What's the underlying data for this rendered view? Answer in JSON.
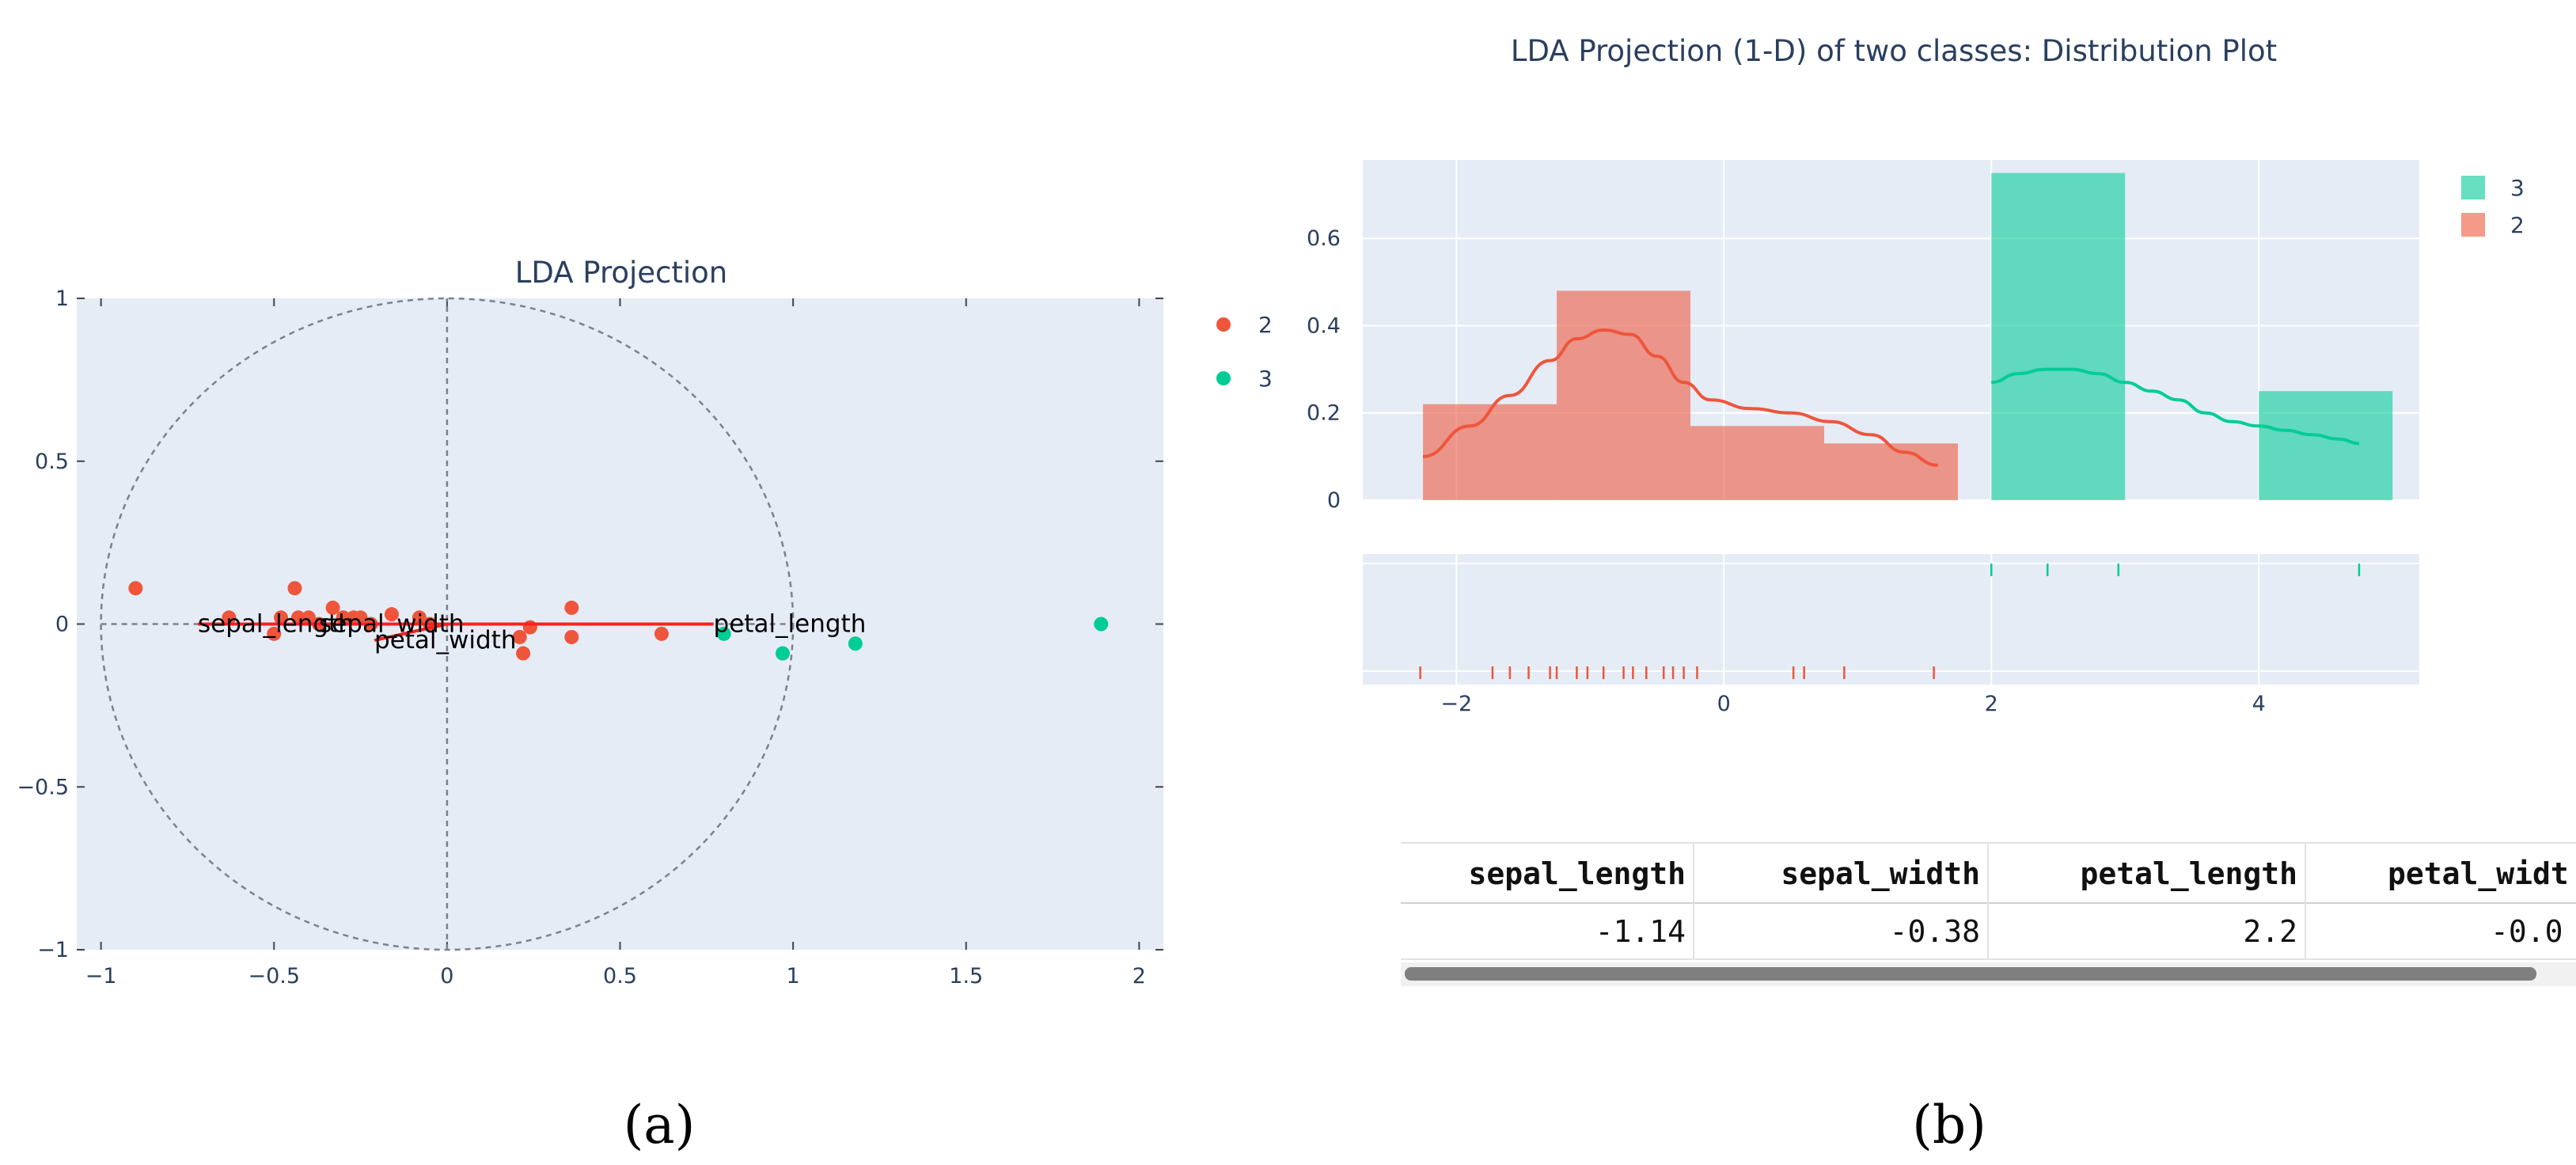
{
  "chart_data": [
    {
      "type": "scatter",
      "title": "LDA Projection",
      "xlim": [
        -1.07,
        2.07
      ],
      "ylim": [
        -1,
        1
      ],
      "x_ticks": [
        -1,
        -0.5,
        0,
        0.5,
        1,
        1.5,
        2
      ],
      "y_ticks": [
        -1,
        -0.5,
        0,
        0.5,
        1
      ],
      "unit_circle": true,
      "legend": {
        "placement": "right",
        "entries": [
          "2",
          "3"
        ]
      },
      "series": [
        {
          "name": "2",
          "color": "#ef553b",
          "points": [
            {
              "x": -0.9,
              "y": 0.11
            },
            {
              "x": -0.63,
              "y": 0.02
            },
            {
              "x": -0.5,
              "y": -0.03
            },
            {
              "x": -0.48,
              "y": 0.02
            },
            {
              "x": -0.44,
              "y": 0.11
            },
            {
              "x": -0.43,
              "y": 0.02
            },
            {
              "x": -0.4,
              "y": 0.02
            },
            {
              "x": -0.37,
              "y": 0.0
            },
            {
              "x": -0.33,
              "y": 0.05
            },
            {
              "x": -0.3,
              "y": 0.02
            },
            {
              "x": -0.27,
              "y": 0.02
            },
            {
              "x": -0.25,
              "y": 0.02
            },
            {
              "x": -0.22,
              "y": 0.0
            },
            {
              "x": -0.16,
              "y": 0.03
            },
            {
              "x": -0.08,
              "y": 0.02
            },
            {
              "x": -0.05,
              "y": 0.0
            },
            {
              "x": 0.21,
              "y": -0.04
            },
            {
              "x": 0.22,
              "y": -0.09
            },
            {
              "x": 0.24,
              "y": -0.01
            },
            {
              "x": 0.36,
              "y": 0.05
            },
            {
              "x": 0.36,
              "y": -0.04
            },
            {
              "x": 0.62,
              "y": -0.03
            }
          ]
        },
        {
          "name": "3",
          "color": "#00cc96",
          "points": [
            {
              "x": 0.8,
              "y": -0.03
            },
            {
              "x": 0.97,
              "y": -0.09
            },
            {
              "x": 1.18,
              "y": -0.06
            },
            {
              "x": 1.89,
              "y": 0.0
            }
          ]
        }
      ],
      "loadings": [
        {
          "label": "sepal_length",
          "x": -0.72,
          "y": 0.0
        },
        {
          "label": "sepal_width",
          "x": -0.37,
          "y": 0.0
        },
        {
          "label": "petal_width",
          "x": -0.21,
          "y": -0.05
        },
        {
          "label": "petal_length",
          "x": 0.77,
          "y": 0.0
        }
      ]
    },
    {
      "type": "bar",
      "title": "LDA Projection (1-D) of two classes: Distribution Plot",
      "xlim": [
        -2.7,
        5.2
      ],
      "ylim": [
        0,
        0.78
      ],
      "x_ticks": [
        -2,
        0,
        2,
        4
      ],
      "x_tick_labels": [
        "−2",
        "0",
        "2",
        "4"
      ],
      "y_ticks": [
        0,
        0.2,
        0.4,
        0.6
      ],
      "legend": {
        "placement": "top-right",
        "entries": [
          "3",
          "2"
        ]
      },
      "histograms": [
        {
          "name": "2",
          "color": "#ef553b",
          "bins": [
            {
              "x0": -2.25,
              "x1": -1.25,
              "value": 0.22
            },
            {
              "x0": -1.25,
              "x1": -0.25,
              "value": 0.48
            },
            {
              "x0": -0.25,
              "x1": 0.75,
              "value": 0.17
            },
            {
              "x0": 0.75,
              "x1": 1.75,
              "value": 0.13
            }
          ]
        },
        {
          "name": "3",
          "color": "#00cc96",
          "bins": [
            {
              "x0": 2.0,
              "x1": 3.0,
              "value": 0.75
            },
            {
              "x0": 3.0,
              "x1": 4.0,
              "value": 0.0
            },
            {
              "x0": 4.0,
              "x1": 5.0,
              "value": 0.25
            }
          ]
        }
      ],
      "kde": [
        {
          "name": "2",
          "color": "#ef553b",
          "x": [
            -2.25,
            -1.9,
            -1.6,
            -1.3,
            -1.1,
            -0.9,
            -0.7,
            -0.5,
            -0.3,
            -0.1,
            0.2,
            0.5,
            0.8,
            1.1,
            1.35,
            1.6
          ],
          "y": [
            0.1,
            0.17,
            0.24,
            0.32,
            0.37,
            0.39,
            0.38,
            0.33,
            0.27,
            0.23,
            0.21,
            0.2,
            0.18,
            0.15,
            0.11,
            0.08
          ]
        },
        {
          "name": "3",
          "color": "#00cc96",
          "x": [
            2.0,
            2.2,
            2.4,
            2.6,
            2.8,
            3.0,
            3.2,
            3.4,
            3.6,
            3.8,
            4.0,
            4.2,
            4.4,
            4.6,
            4.75
          ],
          "y": [
            0.27,
            0.29,
            0.3,
            0.3,
            0.29,
            0.27,
            0.25,
            0.23,
            0.2,
            0.18,
            0.17,
            0.16,
            0.15,
            0.14,
            0.13
          ]
        }
      ],
      "rug": [
        {
          "name": "3",
          "color": "#00cc96",
          "x": [
            2.0,
            2.42,
            2.95,
            4.75
          ]
        },
        {
          "name": "2",
          "color": "#ef553b",
          "x": [
            -2.27,
            -1.73,
            -1.6,
            -1.46,
            -1.3,
            -1.25,
            -1.1,
            -1.02,
            -0.9,
            -0.75,
            -0.68,
            -0.58,
            -0.45,
            -0.38,
            -0.3,
            -0.2,
            0.52,
            0.6,
            0.9,
            1.57
          ]
        }
      ]
    }
  ],
  "table": {
    "headers": [
      "sepal_length",
      "sepal_width",
      "petal_length",
      "petal_widt"
    ],
    "row": [
      "-1.14",
      "-0.38",
      "2.2",
      "-0.0"
    ]
  },
  "captions": [
    "(a)",
    "(b)"
  ],
  "colors": {
    "plot_bg": "#e5ecf6",
    "class_2": "#ef553b",
    "class_3": "#00cc96",
    "kde_2": "#f0654b",
    "loading_arrow": "#ff1f1f",
    "grid": "#ffffff",
    "scrollbar": "#7f7f7f"
  }
}
